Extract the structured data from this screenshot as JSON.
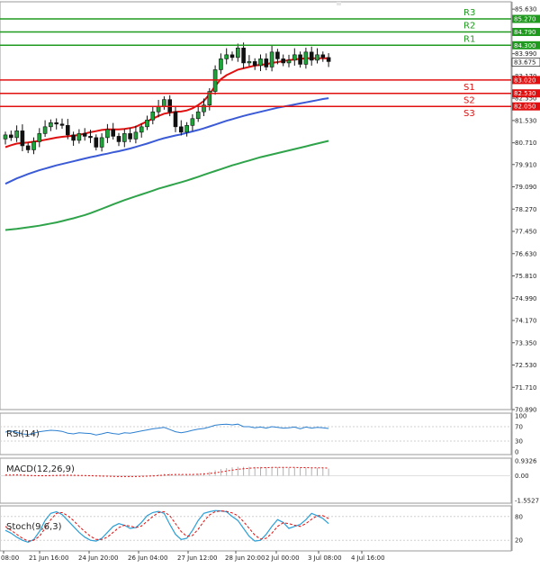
{
  "chart_data": [
    {
      "type": "candlestick",
      "title": "",
      "y_ticks": [
        "85.630",
        "84.790",
        "83.990",
        "83.170",
        "82.350",
        "81.530",
        "80.710",
        "79.910",
        "79.090",
        "78.270",
        "77.450",
        "76.630",
        "75.810",
        "74.990",
        "74.170",
        "73.350",
        "72.530",
        "71.710",
        "70.890"
      ],
      "ylim": [
        70.89,
        85.9
      ],
      "x_ticks": [
        "08:00",
        "21 Jun 16:00",
        "24 Jun 20:00",
        "26 Jun 04:00",
        "27 Jun 12:00",
        "28 Jun 20:00",
        "2 Jul 00:00",
        "3 Jul 08:00",
        "4 Jul 16:00"
      ],
      "current_price": "83.675",
      "levels": [
        {
          "name": "R3",
          "value": "85.270",
          "type": "resistance",
          "color": "#1f9a1f"
        },
        {
          "name": "R2",
          "value": "84.790",
          "type": "resistance",
          "color": "#1f9a1f"
        },
        {
          "name": "R1",
          "value": "84.300",
          "type": "resistance",
          "color": "#1f9a1f"
        },
        {
          "name": "S1",
          "value": "83.020",
          "type": "support",
          "color": "#e01010"
        },
        {
          "name": "S2",
          "value": "82.530",
          "type": "support",
          "color": "#e01010"
        },
        {
          "name": "S3",
          "value": "82.050",
          "type": "support",
          "color": "#e01010"
        }
      ],
      "candles_close": [
        81.0,
        80.9,
        81.15,
        80.6,
        80.45,
        80.75,
        81.05,
        81.3,
        81.45,
        81.4,
        81.35,
        81.0,
        80.8,
        81.05,
        80.95,
        80.9,
        80.55,
        80.9,
        81.2,
        80.95,
        80.75,
        81.05,
        80.85,
        81.1,
        81.3,
        81.55,
        81.85,
        82.05,
        82.3,
        81.85,
        81.3,
        81.1,
        81.35,
        81.6,
        81.85,
        82.1,
        82.6,
        83.4,
        83.8,
        83.95,
        83.85,
        84.2,
        83.65,
        83.7,
        83.55,
        83.8,
        83.5,
        84.05,
        83.8,
        83.65,
        83.75,
        83.95,
        83.6,
        84.05,
        83.75,
        83.95,
        83.85,
        83.7
      ],
      "ma_series": [
        {
          "color": "#e01010",
          "values": [
            80.55,
            80.62,
            80.68,
            80.7,
            80.72,
            80.75,
            80.78,
            80.82,
            80.86,
            80.9,
            80.93,
            80.95,
            80.97,
            81.0,
            81.05,
            81.1,
            81.14,
            81.18,
            81.2,
            81.2,
            81.2,
            81.22,
            81.25,
            81.3,
            81.4,
            81.5,
            81.6,
            81.7,
            81.78,
            81.82,
            81.85,
            81.86,
            81.9,
            81.98,
            82.1,
            82.25,
            82.5,
            82.8,
            83.05,
            83.2,
            83.3,
            83.4,
            83.45,
            83.5,
            83.55,
            83.58,
            83.6,
            83.65,
            83.68,
            83.72,
            83.75,
            83.78,
            83.8,
            83.82,
            83.82,
            83.82,
            83.82,
            83.82
          ]
        },
        {
          "color": "#3b5bd6",
          "values": [
            79.2,
            79.3,
            79.4,
            79.48,
            79.56,
            79.63,
            79.7,
            79.76,
            79.82,
            79.88,
            79.93,
            79.98,
            80.03,
            80.08,
            80.13,
            80.18,
            80.22,
            80.27,
            80.31,
            80.36,
            80.4,
            80.45,
            80.5,
            80.56,
            80.62,
            80.68,
            80.75,
            80.82,
            80.88,
            80.93,
            80.98,
            81.02,
            81.08,
            81.13,
            81.18,
            81.24,
            81.31,
            81.38,
            81.45,
            81.52,
            81.58,
            81.64,
            81.7,
            81.75,
            81.8,
            81.85,
            81.9,
            81.95,
            82.0,
            82.04,
            82.08,
            82.12,
            82.16,
            82.2,
            82.24,
            82.28,
            82.32,
            82.35
          ]
        },
        {
          "color": "#2ea34a",
          "values": [
            77.5,
            77.52,
            77.54,
            77.57,
            77.6,
            77.63,
            77.66,
            77.7,
            77.74,
            77.78,
            77.83,
            77.88,
            77.93,
            77.99,
            78.05,
            78.12,
            78.2,
            78.28,
            78.36,
            78.44,
            78.52,
            78.6,
            78.67,
            78.74,
            78.81,
            78.88,
            78.95,
            79.02,
            79.08,
            79.14,
            79.2,
            79.26,
            79.32,
            79.39,
            79.46,
            79.53,
            79.6,
            79.67,
            79.74,
            79.81,
            79.88,
            79.94,
            80.0,
            80.06,
            80.12,
            80.18,
            80.23,
            80.28,
            80.33,
            80.38,
            80.43,
            80.48,
            80.53,
            80.58,
            80.63,
            80.68,
            80.73,
            80.78
          ]
        }
      ]
    },
    {
      "type": "line",
      "label": "RSI(14)",
      "y_ticks": [
        "100",
        "70",
        "30",
        "0"
      ],
      "ylim": [
        0,
        100
      ],
      "values": [
        55,
        58,
        54,
        50,
        48,
        52,
        56,
        58,
        60,
        59,
        57,
        52,
        50,
        53,
        52,
        51,
        47,
        50,
        54,
        51,
        49,
        53,
        52,
        55,
        58,
        61,
        64,
        66,
        68,
        62,
        56,
        53,
        56,
        60,
        63,
        65,
        69,
        74,
        76,
        77,
        75,
        77,
        70,
        70,
        67,
        69,
        66,
        70,
        68,
        66,
        67,
        69,
        64,
        69,
        66,
        68,
        67,
        65
      ]
    },
    {
      "type": "bar",
      "label": "MACD(12,26,9)",
      "y_ticks": [
        "0.9326",
        "0.00",
        "-1.5527"
      ],
      "ylim": [
        -1.5527,
        0.9326
      ],
      "values": [
        0.05,
        0.04,
        0.06,
        0.02,
        -0.02,
        -0.03,
        -0.02,
        0.0,
        0.02,
        0.04,
        0.05,
        0.04,
        0.02,
        0.01,
        0.0,
        -0.01,
        -0.04,
        -0.05,
        -0.04,
        -0.05,
        -0.07,
        -0.06,
        -0.06,
        -0.05,
        -0.03,
        0.0,
        0.04,
        0.08,
        0.12,
        0.12,
        0.1,
        0.08,
        0.08,
        0.1,
        0.13,
        0.17,
        0.24,
        0.34,
        0.42,
        0.48,
        0.52,
        0.56,
        0.56,
        0.56,
        0.55,
        0.55,
        0.53,
        0.54,
        0.53,
        0.51,
        0.5,
        0.5,
        0.48,
        0.49,
        0.48,
        0.48,
        0.47,
        0.45
      ],
      "signal": [
        0.04,
        0.04,
        0.05,
        0.04,
        0.02,
        0.01,
        0.0,
        0.0,
        0.01,
        0.02,
        0.03,
        0.03,
        0.03,
        0.02,
        0.01,
        0.0,
        -0.01,
        -0.02,
        -0.03,
        -0.04,
        -0.05,
        -0.05,
        -0.05,
        -0.05,
        -0.04,
        -0.03,
        -0.01,
        0.01,
        0.04,
        0.06,
        0.08,
        0.08,
        0.08,
        0.08,
        0.09,
        0.11,
        0.14,
        0.18,
        0.24,
        0.3,
        0.35,
        0.4,
        0.44,
        0.47,
        0.49,
        0.5,
        0.51,
        0.52,
        0.52,
        0.52,
        0.52,
        0.52,
        0.51,
        0.51,
        0.5,
        0.5,
        0.49,
        0.48
      ]
    },
    {
      "type": "line",
      "label": "Stoch(9,6,3)",
      "y_ticks": [
        "80",
        "20"
      ],
      "ylim": [
        0,
        100
      ],
      "k_values": [
        45,
        38,
        28,
        20,
        15,
        22,
        42,
        70,
        88,
        92,
        85,
        70,
        55,
        40,
        28,
        20,
        18,
        25,
        40,
        55,
        62,
        58,
        50,
        52,
        65,
        82,
        90,
        93,
        88,
        60,
        35,
        22,
        25,
        45,
        70,
        88,
        92,
        95,
        94,
        92,
        80,
        70,
        50,
        30,
        18,
        20,
        35,
        55,
        72,
        65,
        50,
        55,
        60,
        72,
        88,
        82,
        75,
        62
      ],
      "d_values": [
        55,
        45,
        35,
        25,
        18,
        20,
        30,
        50,
        72,
        88,
        90,
        82,
        70,
        55,
        42,
        30,
        22,
        22,
        28,
        40,
        52,
        58,
        56,
        52,
        56,
        68,
        80,
        90,
        92,
        82,
        62,
        42,
        30,
        32,
        48,
        68,
        84,
        92,
        94,
        93,
        89,
        82,
        67,
        50,
        33,
        23,
        25,
        38,
        55,
        64,
        62,
        58,
        55,
        62,
        73,
        82,
        82,
        75
      ]
    }
  ]
}
